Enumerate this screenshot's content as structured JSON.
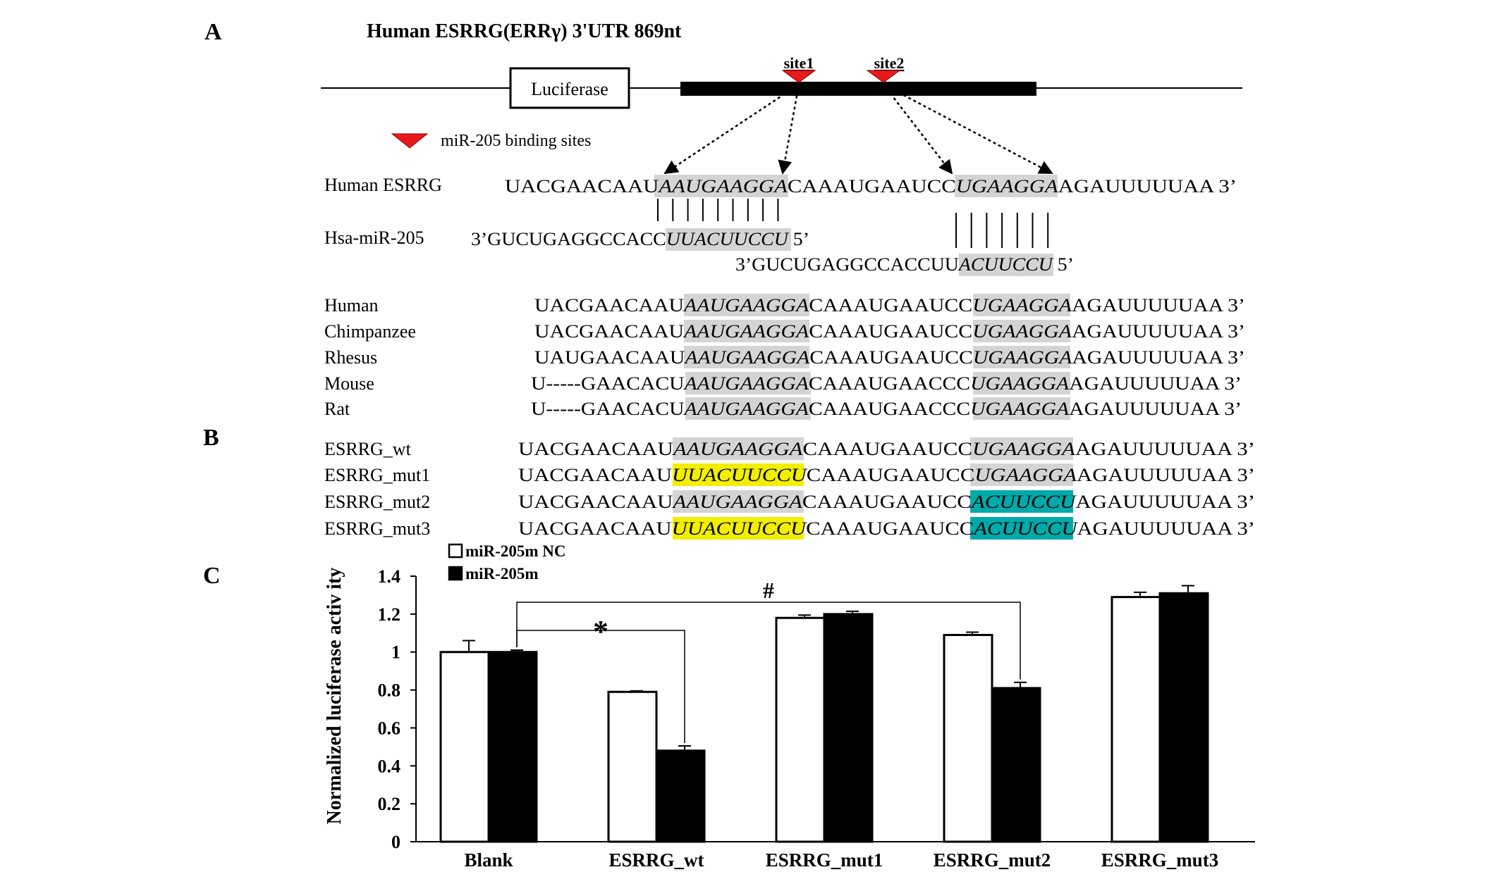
{
  "panels": {
    "a": "A",
    "b": "B",
    "c": "C"
  },
  "construct": {
    "title": "Human ESRRG(ERRγ) 3'UTR 869nt",
    "luciferase_label": "Luciferase",
    "site1_label": "site1",
    "site2_label": "site2",
    "legend_label": "miR-205 binding sites",
    "marker_color": "#e8191c"
  },
  "pairing": {
    "esrrg_label": "Human  ESRRG",
    "esrrg_pre": "UACGAACAAU",
    "esrrg_site1": "AAUGAAGGA",
    "esrrg_mid": "CAAAUGAAUCC",
    "esrrg_site2": "UGAAGGA",
    "esrrg_post": "AGAUUUUUAA  3’",
    "mir_label": "Hsa-miR-205",
    "mir1_pre": "3’GUCUGAGGCCACC",
    "mir1_seed": "UUACUUCCU",
    "mir1_post": " 5’",
    "mir2_pre": "3’GUCUGAGGCCACCUU",
    "mir2_seed": "ACUUCCU",
    "mir2_post": " 5’"
  },
  "conservation": [
    {
      "species": "Human",
      "pre": "UACGAACAAU",
      "s1": "AAUGAAGGA",
      "mid": "CAAAUGAAUCC",
      "s2": "UGAAGGA",
      "post": "AGAUUUUUAA 3’"
    },
    {
      "species": "Chimpanzee",
      "pre": "UACGAACAAU",
      "s1": "AAUGAAGGA",
      "mid": "CAAAUGAAUCC",
      "s2": "UGAAGGA",
      "post": "AGAUUUUUAA 3’"
    },
    {
      "species": "Rhesus",
      "pre": "UAUGAACAAU",
      "s1": "AAUGAAGGA",
      "mid": "CAAAUGAAUCC",
      "s2": "UGAAGGA",
      "post": "AGAUUUUUAA 3’"
    },
    {
      "species": "Mouse",
      "pre": "U-----GAACACU",
      "s1": "AAUGAAGGA",
      "mid": "CAAAUGAACCC",
      "s2": "UGAAGGA",
      "post": "AGAUUUUUAA 3’"
    },
    {
      "species": "Rat",
      "pre": "U-----GAACACU",
      "s1": "AAUGAAGGA",
      "mid": "CAAAUGAACCC",
      "s2": "UGAAGGA",
      "post": "AGAUUUUUAA 3’"
    }
  ],
  "mutants": [
    {
      "name": "ESRRG_wt",
      "pre": "UACGAACAAU",
      "s1": "AAUGAAGGA",
      "s1_color": "#d4d4d4",
      "mid": "CAAAUGAAUCC",
      "s2": "UGAAGGA",
      "s2_color": "#d4d4d4",
      "post": "AGAUUUUUAA  3’"
    },
    {
      "name": "ESRRG_mut1",
      "pre": "UACGAACAAU",
      "s1": "UUACUUCCU",
      "s1_color": "#f2ee00",
      "mid": "CAAAUGAAUCC",
      "s2": "UGAAGGA",
      "s2_color": "#d4d4d4",
      "post": "AGAUUUUUAA  3’"
    },
    {
      "name": "ESRRG_mut2",
      "pre": "UACGAACAAU",
      "s1": "AAUGAAGGA",
      "s1_color": "#d4d4d4",
      "mid": "CAAAUGAAUCC",
      "s2": "ACUUCCU",
      "s2_color": "#00aaaa",
      "post": "AGAUUUUUAA  3’"
    },
    {
      "name": "ESRRG_mut3",
      "pre": "UACGAACAAU",
      "s1": "UUACUUCCU",
      "s1_color": "#f2ee00",
      "mid": "CAAAUGAAUCC",
      "s2": "ACUUCCU",
      "s2_color": "#00aaaa",
      "post": "AGAUUUUUAA  3’"
    }
  ],
  "chart_data": {
    "type": "bar",
    "categories": [
      "Blank",
      "ESRRG_wt",
      "ESRRG_mut1",
      "ESRRG_mut2",
      "ESRRG_mut3"
    ],
    "series": [
      {
        "name": "miR-205m NC",
        "values": [
          1.0,
          0.79,
          1.18,
          1.09,
          1.29
        ],
        "errors": [
          0.06,
          0.005,
          0.015,
          0.015,
          0.025
        ],
        "color": "#ffffff"
      },
      {
        "name": "miR-205m",
        "values": [
          1.0,
          0.48,
          1.2,
          0.81,
          1.31
        ],
        "errors": [
          0.01,
          0.025,
          0.015,
          0.03,
          0.04
        ],
        "color": "#000000"
      }
    ],
    "ylabel": "Normalized luciferase activ ity",
    "ylim": [
      0,
      1.4
    ],
    "yticks": [
      "0",
      "0.2",
      "0.4",
      "0.6",
      "0.8",
      "1",
      "1.2",
      "1.4"
    ],
    "legend_position": "top-left",
    "grid": false,
    "annotations": [
      {
        "symbol": "*",
        "from": "Blank",
        "to": "ESRRG_wt"
      },
      {
        "symbol": "#",
        "from": "Blank",
        "to": "ESRRG_mut2"
      }
    ]
  }
}
